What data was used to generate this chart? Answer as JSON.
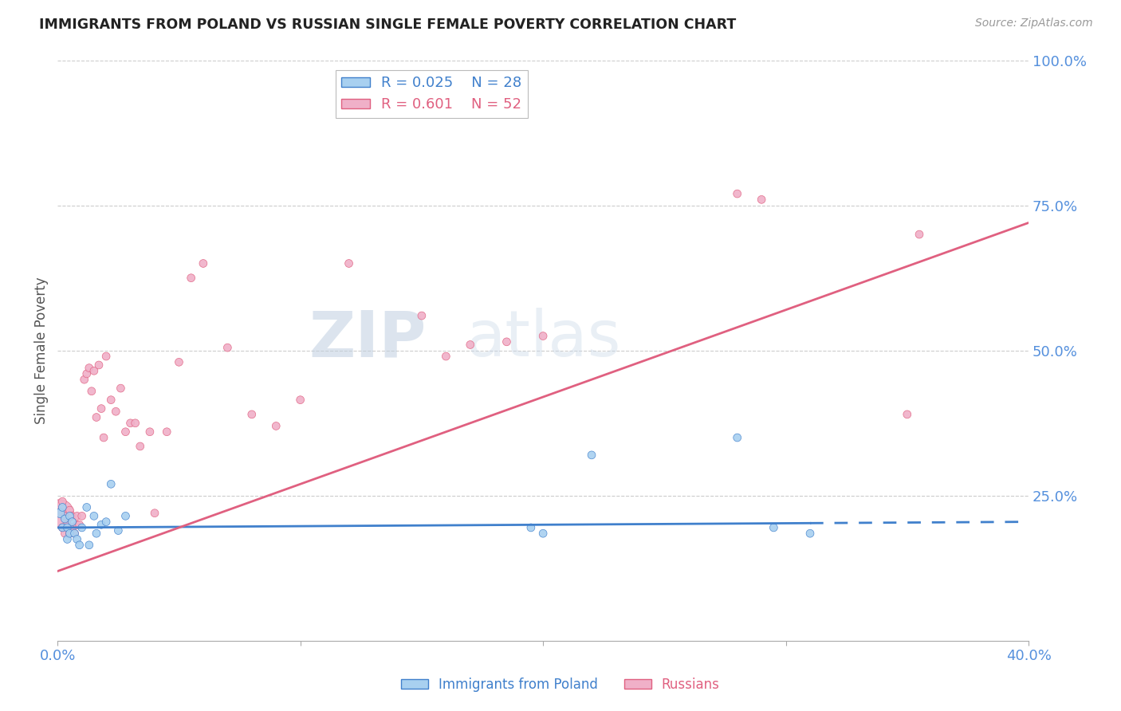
{
  "title": "IMMIGRANTS FROM POLAND VS RUSSIAN SINGLE FEMALE POVERTY CORRELATION CHART",
  "source": "Source: ZipAtlas.com",
  "ylabel": "Single Female Poverty",
  "xlim": [
    0.0,
    0.4
  ],
  "ylim": [
    0.0,
    1.0
  ],
  "color_poland": "#a8d0f0",
  "color_russia": "#f0b0c8",
  "color_poland_line": "#4080cc",
  "color_russia_line": "#e06080",
  "color_axis_text": "#5590dd",
  "poland_x": [
    0.001,
    0.002,
    0.002,
    0.003,
    0.004,
    0.004,
    0.005,
    0.005,
    0.006,
    0.007,
    0.008,
    0.009,
    0.01,
    0.012,
    0.013,
    0.015,
    0.016,
    0.018,
    0.02,
    0.022,
    0.025,
    0.028,
    0.195,
    0.2,
    0.22,
    0.28,
    0.295,
    0.31
  ],
  "poland_y": [
    0.22,
    0.23,
    0.195,
    0.21,
    0.175,
    0.195,
    0.185,
    0.215,
    0.205,
    0.185,
    0.175,
    0.165,
    0.195,
    0.23,
    0.165,
    0.215,
    0.185,
    0.2,
    0.205,
    0.27,
    0.19,
    0.215,
    0.195,
    0.185,
    0.32,
    0.35,
    0.195,
    0.185
  ],
  "poland_sizes": [
    70,
    50,
    50,
    50,
    50,
    50,
    50,
    50,
    50,
    50,
    50,
    50,
    50,
    50,
    50,
    50,
    50,
    50,
    50,
    50,
    50,
    50,
    50,
    50,
    50,
    50,
    50,
    50
  ],
  "russia_x": [
    0.001,
    0.002,
    0.002,
    0.003,
    0.003,
    0.004,
    0.005,
    0.005,
    0.006,
    0.006,
    0.007,
    0.008,
    0.008,
    0.009,
    0.01,
    0.011,
    0.012,
    0.013,
    0.014,
    0.015,
    0.016,
    0.017,
    0.018,
    0.019,
    0.02,
    0.022,
    0.024,
    0.026,
    0.028,
    0.03,
    0.032,
    0.034,
    0.038,
    0.04,
    0.045,
    0.05,
    0.055,
    0.06,
    0.07,
    0.08,
    0.09,
    0.1,
    0.12,
    0.15,
    0.16,
    0.17,
    0.185,
    0.2,
    0.28,
    0.29,
    0.35,
    0.355
  ],
  "russia_y": [
    0.22,
    0.195,
    0.24,
    0.185,
    0.215,
    0.2,
    0.225,
    0.185,
    0.195,
    0.215,
    0.185,
    0.2,
    0.215,
    0.2,
    0.215,
    0.45,
    0.46,
    0.47,
    0.43,
    0.465,
    0.385,
    0.475,
    0.4,
    0.35,
    0.49,
    0.415,
    0.395,
    0.435,
    0.36,
    0.375,
    0.375,
    0.335,
    0.36,
    0.22,
    0.36,
    0.48,
    0.625,
    0.65,
    0.505,
    0.39,
    0.37,
    0.415,
    0.65,
    0.56,
    0.49,
    0.51,
    0.515,
    0.525,
    0.77,
    0.76,
    0.39,
    0.7
  ],
  "russia_sizes": [
    600,
    50,
    50,
    50,
    50,
    50,
    50,
    50,
    50,
    50,
    50,
    50,
    50,
    50,
    50,
    50,
    50,
    50,
    50,
    50,
    50,
    50,
    50,
    50,
    50,
    50,
    50,
    50,
    50,
    50,
    50,
    50,
    50,
    50,
    50,
    50,
    50,
    50,
    50,
    50,
    50,
    50,
    50,
    50,
    50,
    50,
    50,
    50,
    50,
    50,
    50,
    50
  ],
  "poland_line_intercept": 0.195,
  "poland_line_slope": 0.025,
  "russia_line_x0": 0.0,
  "russia_line_y0": 0.12,
  "russia_line_x1": 0.4,
  "russia_line_y1": 0.72,
  "watermark_zip": "ZIP",
  "watermark_atlas": "atlas",
  "legend_r1": "R = 0.025",
  "legend_n1": "N = 28",
  "legend_r2": "R = 0.601",
  "legend_n2": "N = 52"
}
